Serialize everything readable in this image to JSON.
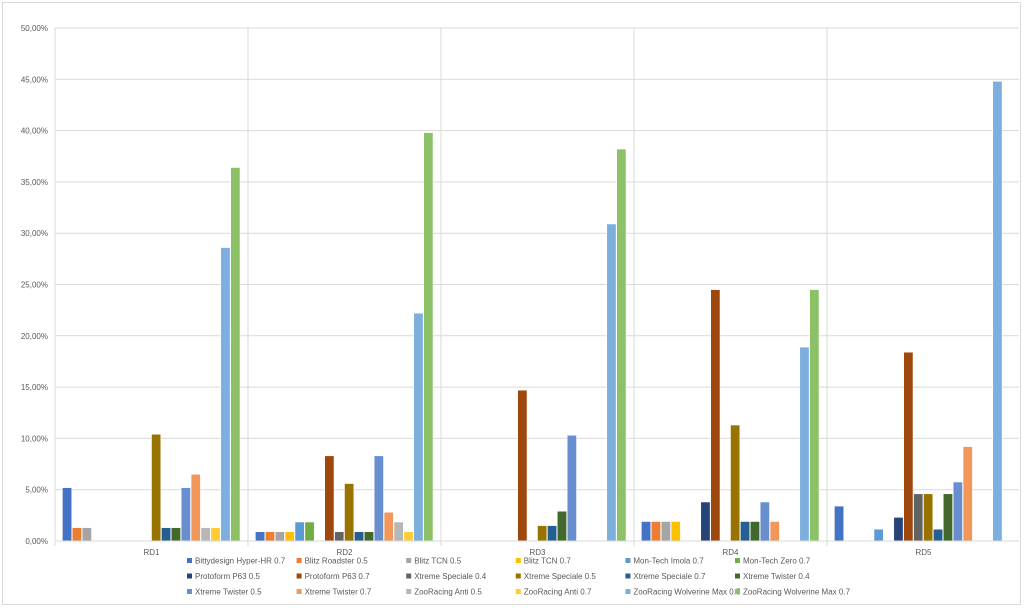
{
  "chart_data": {
    "type": "bar",
    "title": "",
    "xlabel": "",
    "ylabel": "",
    "ylim": [
      0,
      50
    ],
    "y_tick_step": 5,
    "y_tick_format": "percent with comma decimal, 2 places",
    "grid": true,
    "legend_position": "bottom",
    "categories": [
      "RD1",
      "RD2",
      "RD3",
      "RD4",
      "RD5"
    ],
    "series": [
      {
        "name": "Bittydesign Hyper-HR 0.7",
        "color": "#4472C4",
        "values": [
          5.2,
          0.9,
          0,
          1.9,
          3.4
        ]
      },
      {
        "name": "Blitz Roadster 0.5",
        "color": "#ED7D31",
        "values": [
          1.3,
          0.9,
          0,
          1.9,
          0
        ]
      },
      {
        "name": "Blitz TCN 0.5",
        "color": "#A5A5A5",
        "values": [
          1.3,
          0.9,
          0,
          1.9,
          0
        ]
      },
      {
        "name": "Blitz TCN 0.7",
        "color": "#FFC000",
        "values": [
          0,
          0.9,
          0,
          1.9,
          0
        ]
      },
      {
        "name": "Mon-Tech Imola 0.7",
        "color": "#5B9BD5",
        "values": [
          0,
          1.85,
          0,
          0,
          1.15
        ]
      },
      {
        "name": "Mon-Tech Zero 0.7",
        "color": "#70AD47",
        "values": [
          0,
          1.85,
          0,
          0,
          0
        ]
      },
      {
        "name": "Protoform P63 0.5",
        "color": "#264478",
        "values": [
          0,
          0,
          0,
          3.8,
          2.3
        ]
      },
      {
        "name": "Protoform P63 0.7",
        "color": "#9E480E",
        "values": [
          0,
          8.3,
          14.7,
          24.5,
          18.4
        ]
      },
      {
        "name": "Xtreme Speciale 0.4",
        "color": "#636363",
        "values": [
          0,
          0.9,
          0,
          0,
          4.6
        ]
      },
      {
        "name": "Xtreme Speciale 0.5",
        "color": "#997300",
        "values": [
          10.4,
          5.6,
          1.5,
          11.3,
          4.6
        ]
      },
      {
        "name": "Xtreme Speciale 0.7",
        "color": "#255E91",
        "values": [
          1.3,
          0.9,
          1.5,
          1.9,
          1.15
        ]
      },
      {
        "name": "Xtreme Twister 0.4",
        "color": "#43682B",
        "values": [
          1.3,
          0.9,
          2.9,
          1.9,
          4.6
        ]
      },
      {
        "name": "Xtreme Twister 0.5",
        "color": "#698ED0",
        "values": [
          5.2,
          8.3,
          10.3,
          3.8,
          5.75
        ]
      },
      {
        "name": "Xtreme Twister 0.7",
        "color": "#F1975A",
        "values": [
          6.5,
          2.8,
          0,
          1.9,
          9.2
        ]
      },
      {
        "name": "ZooRacing Anti 0.5",
        "color": "#B7B7B7",
        "values": [
          1.3,
          1.85,
          0,
          0,
          0
        ]
      },
      {
        "name": "ZooRacing Anti 0.7",
        "color": "#FFCD33",
        "values": [
          1.3,
          0.9,
          0,
          0,
          0
        ]
      },
      {
        "name": "ZooRacing Wolverine Max 0.5",
        "color": "#7CAFDD",
        "values": [
          28.6,
          22.2,
          30.9,
          18.9,
          44.8
        ]
      },
      {
        "name": "ZooRacing Wolverine Max 0.7",
        "color": "#8CC168",
        "values": [
          36.4,
          39.8,
          38.2,
          24.5,
          0
        ]
      }
    ]
  }
}
